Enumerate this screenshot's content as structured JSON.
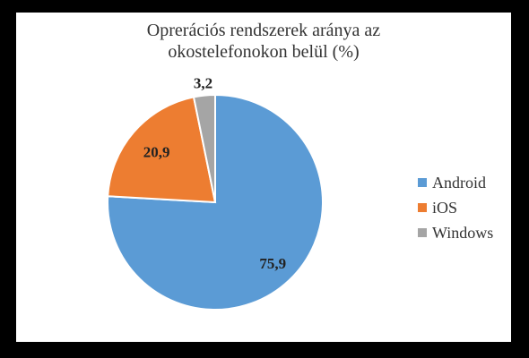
{
  "chart_data": {
    "type": "pie",
    "title_lines": [
      "Oprerációs rendszerek aránya az",
      "okostelefonokon belül (%)"
    ],
    "slices": [
      {
        "label": "Android",
        "value": 75.9,
        "value_label": "75,9",
        "color": "#5b9bd5"
      },
      {
        "label": "iOS",
        "value": 20.9,
        "value_label": "20,9",
        "color": "#ed7d31"
      },
      {
        "label": "Windows",
        "value": 3.2,
        "value_label": "3,2",
        "color": "#a5a5a5"
      }
    ],
    "legend_position": "right"
  }
}
